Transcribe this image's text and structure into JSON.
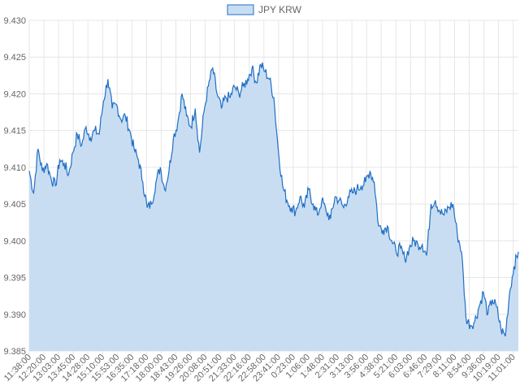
{
  "chart_data": {
    "type": "area",
    "title": "",
    "xlabel": "",
    "ylabel": "",
    "legend_position": "top",
    "grid": true,
    "ylim": [
      9.385,
      9.43
    ],
    "y_ticks": [
      "9.430",
      "9.425",
      "9.420",
      "9.415",
      "9.410",
      "9.405",
      "9.400",
      "9.395",
      "9.390",
      "9.385"
    ],
    "x_ticks": [
      "11:38:00",
      "12:20:00",
      "13:03:00",
      "13:45:00",
      "14:28:00",
      "15:10:00",
      "15:53:00",
      "16:35:00",
      "17:18:00",
      "18:00:00",
      "18:43:00",
      "19:26:00",
      "20:08:00",
      "20:51:00",
      "21:33:00",
      "22:16:00",
      "22:58:00",
      "23:41:00",
      "0:23:00",
      "1:06:00",
      "1:48:00",
      "2:31:00",
      "3:13:00",
      "3:56:00",
      "4:38:00",
      "5:21:00",
      "6:03:00",
      "6:46:00",
      "7:29:00",
      "8:11:00",
      "8:54:00",
      "9:36:00",
      "10:19:00",
      "11:01:00"
    ],
    "series": [
      {
        "name": "JPY KRW",
        "color": "#1f6fc5",
        "fill": "#c9ddf2",
        "values": [
          9.4095,
          9.4065,
          9.4125,
          9.4095,
          9.4105,
          9.4085,
          9.4075,
          9.411,
          9.4105,
          9.409,
          9.412,
          9.4145,
          9.413,
          9.4155,
          9.414,
          9.415,
          9.4145,
          9.419,
          9.422,
          9.418,
          9.4185,
          9.4165,
          9.417,
          9.415,
          9.4125,
          9.411,
          9.408,
          9.4045,
          9.405,
          9.408,
          9.41,
          9.407,
          9.4095,
          9.414,
          9.416,
          9.42,
          9.417,
          9.4155,
          9.418,
          9.412,
          9.4175,
          9.421,
          9.4235,
          9.42,
          9.418,
          9.4195,
          9.4195,
          9.421,
          9.42,
          9.421,
          9.422,
          9.4235,
          9.4215,
          9.424,
          9.423,
          9.422,
          9.4195,
          9.4125,
          9.4075,
          9.4055,
          9.4045,
          9.404,
          9.406,
          9.4045,
          9.407,
          9.405,
          9.4035,
          9.4055,
          9.404,
          9.403,
          9.406,
          9.4055,
          9.4045,
          9.406,
          9.4065,
          9.407,
          9.4075,
          9.408,
          9.4095,
          9.408,
          9.402,
          9.4015,
          9.402,
          9.4,
          9.3985,
          9.399,
          9.3975,
          9.399,
          9.4,
          9.3995,
          9.3995,
          9.398,
          9.405,
          9.4055,
          9.404,
          9.4035,
          9.4045,
          9.405,
          9.401,
          9.3985,
          9.3895,
          9.3885,
          9.389,
          9.391,
          9.393,
          9.39,
          9.392,
          9.391,
          9.388,
          9.387,
          9.393,
          9.3965,
          9.3985
        ]
      }
    ]
  },
  "legend": {
    "label": "JPY KRW"
  }
}
